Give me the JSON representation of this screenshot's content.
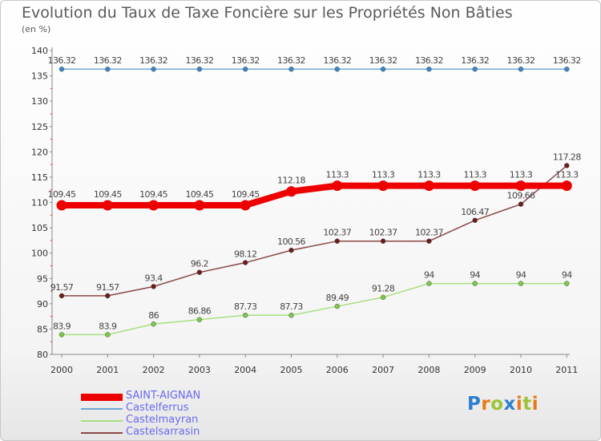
{
  "chart_data": {
    "type": "line",
    "title": "Evolution du Taux de Taxe Foncière sur les Propriétés Non Bâties",
    "xlabel": "",
    "ylabel": "(en %)",
    "x": [
      "2000",
      "2001",
      "2002",
      "2003",
      "2004",
      "2005",
      "2006",
      "2007",
      "2008",
      "2009",
      "2010",
      "2011"
    ],
    "ylim": [
      80,
      140
    ],
    "yticks": [
      80,
      85,
      90,
      95,
      100,
      105,
      110,
      115,
      120,
      125,
      130,
      135,
      140
    ],
    "series": [
      {
        "name": "Castelferrus",
        "color": "#6fa8d8",
        "marker": "#3a86c8",
        "values": [
          136.32,
          136.32,
          136.32,
          136.32,
          136.32,
          136.32,
          136.32,
          136.32,
          136.32,
          136.32,
          136.32,
          136.32
        ],
        "labels": [
          "136.32",
          "136.32",
          "136.32",
          "136.32",
          "136.32",
          "136.32",
          "136.32",
          "136.32",
          "136.32",
          "136.32",
          "136.32",
          "136.32"
        ]
      },
      {
        "name": "Castelmayran",
        "color": "#a8e080",
        "marker": "#7bc84a",
        "values": [
          83.9,
          83.9,
          86,
          86.86,
          87.73,
          87.73,
          89.49,
          91.28,
          94,
          94,
          94,
          94
        ],
        "labels": [
          "83.9",
          "83.9",
          "86",
          "86.86",
          "87.73",
          "87.73",
          "89.49",
          "91.28",
          "94",
          "94",
          "94",
          "94"
        ]
      },
      {
        "name": "Castelsarrasin",
        "color": "#8a4848",
        "marker": "#6a1c1c",
        "values": [
          91.57,
          91.57,
          93.4,
          96.2,
          98.12,
          100.56,
          102.37,
          102.37,
          102.37,
          106.47,
          109.66,
          117.28
        ],
        "labels": [
          "91.57",
          "91.57",
          "93.4",
          "96.2",
          "98.12",
          "100.56",
          "102.37",
          "102.37",
          "102.37",
          "106.47",
          "109.66",
          "117.28"
        ]
      },
      {
        "name": "SAINT-AIGNAN",
        "color": "#ee0000",
        "marker": "#ee0000",
        "bold": true,
        "values": [
          109.45,
          109.45,
          109.45,
          109.45,
          109.45,
          112.18,
          113.3,
          113.3,
          113.3,
          113.3,
          113.3,
          113.3
        ],
        "labels": [
          "109.45",
          "109.45",
          "109.45",
          "109.45",
          "109.45",
          "112.18",
          "113.3",
          "113.3",
          "113.3",
          "113.3",
          "113.3",
          "113.3"
        ]
      }
    ],
    "legend": {
      "position": "bottom-left",
      "entries": [
        "SAINT-AIGNAN",
        "Castelferrus",
        "Castelmayran",
        "Castelsarrasin"
      ]
    }
  },
  "logo": {
    "letters": [
      "P",
      "r",
      "o",
      "x",
      "i",
      "t",
      "i"
    ],
    "colors": [
      "#2f7fd0",
      "#e87a16",
      "#9bc436",
      "#2f7fd0",
      "#e87a16",
      "#9bc436",
      "#e87a16"
    ]
  }
}
